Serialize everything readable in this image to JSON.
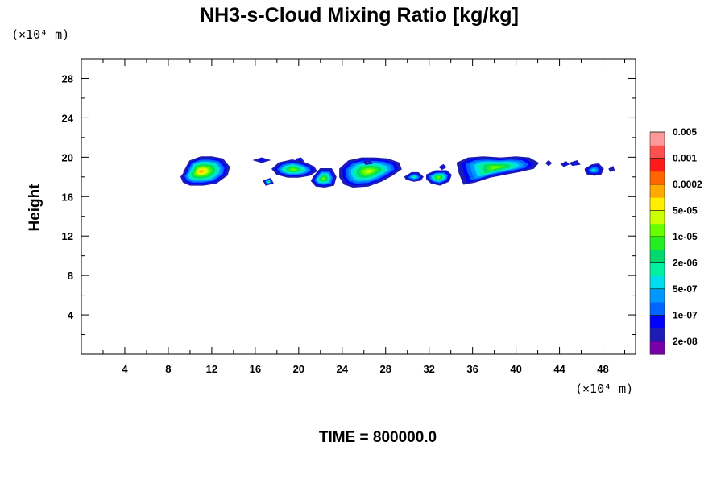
{
  "chart_data": {
    "type": "heatmap",
    "title": "NH3-s-Cloud Mixing Ratio [kg/kg]",
    "ylabel": "Height",
    "x_unit_label": "(×10⁴ m)",
    "y_unit_label": "(×10⁴ m)",
    "xlim": [
      0,
      51
    ],
    "ylim": [
      0,
      30
    ],
    "x_ticks": [
      4,
      8,
      12,
      16,
      20,
      24,
      28,
      32,
      36,
      40,
      44,
      48
    ],
    "y_ticks": [
      4,
      8,
      12,
      16,
      20,
      24,
      28
    ],
    "x_minor_step": 2,
    "y_minor_step": 2,
    "time_label": "TIME = 800000.0",
    "colorbar": {
      "colors": [
        "#7700aa",
        "#1c1cb4",
        "#0000ff",
        "#0066ff",
        "#0099ff",
        "#00ddee",
        "#00f0a0",
        "#00d870",
        "#22ee22",
        "#66ff00",
        "#ccff00",
        "#ffee00",
        "#ffaa00",
        "#ff6600",
        "#ff1a1a",
        "#ff5050",
        "#ff9999"
      ],
      "labels": [
        "2e-08",
        "1e-07",
        "5e-07",
        "2e-06",
        "1e-05",
        "5e-05",
        "0.0002",
        "0.001",
        "0.005"
      ]
    },
    "cloud_cells": [
      {
        "x": [
          9.5,
          10,
          11,
          12,
          13,
          13.6,
          13.4,
          12.4,
          11.2,
          10,
          9.4,
          9.2,
          9.6,
          10
        ],
        "y": [
          18.6,
          19.6,
          20.0,
          20.0,
          19.8,
          19.0,
          18.2,
          17.4,
          17.2,
          17.2,
          17.5,
          18.0,
          18.6,
          18.8
        ],
        "level": 12
      },
      {
        "x": [
          17.6,
          18.2,
          19.4,
          20.6,
          21.4,
          21.6,
          21.0,
          20.0,
          19.0,
          18.0,
          17.6
        ],
        "y": [
          18.8,
          19.4,
          19.7,
          19.4,
          19.0,
          18.6,
          18.2,
          18.0,
          18.0,
          18.3,
          18.8
        ],
        "level": 9
      },
      {
        "x": [
          21.4,
          22.0,
          23.0,
          23.4,
          23.2,
          22.4,
          21.6,
          21.2
        ],
        "y": [
          18.0,
          18.8,
          18.8,
          18.0,
          17.2,
          17.0,
          17.1,
          17.6
        ],
        "level": 9
      },
      {
        "x": [
          23.8,
          24.6,
          25.8,
          27.0,
          28.2,
          29.2,
          29.4,
          28.6,
          27.6,
          26.4,
          25.0,
          24.2,
          23.8
        ],
        "y": [
          18.8,
          19.6,
          19.9,
          19.9,
          19.8,
          19.4,
          18.8,
          18.2,
          17.6,
          17.1,
          17.0,
          17.3,
          18.0
        ],
        "level": 10
      },
      {
        "x": [
          29.8,
          30.4,
          31.0,
          31.4,
          31.2,
          30.6,
          29.9
        ],
        "y": [
          18.0,
          18.4,
          18.4,
          18.0,
          17.7,
          17.6,
          17.8
        ],
        "level": 6
      },
      {
        "x": [
          31.8,
          32.6,
          33.6,
          34.0,
          33.8,
          33.0,
          32.2,
          31.8
        ],
        "y": [
          18.2,
          18.6,
          18.6,
          18.2,
          17.6,
          17.2,
          17.4,
          17.8
        ],
        "level": 9
      },
      {
        "x": [
          34.6,
          35.6,
          37.0,
          38.6,
          40.0,
          41.2,
          42.0,
          41.6,
          40.4,
          39.0,
          37.6,
          36.2,
          35.2,
          34.8
        ],
        "y": [
          19.4,
          19.9,
          20.0,
          19.9,
          20.0,
          19.9,
          19.4,
          18.9,
          18.6,
          18.3,
          18.0,
          17.5,
          17.3,
          18.4
        ],
        "level": 9
      },
      {
        "x": [
          46.4,
          47.0,
          47.6,
          48.0,
          47.8,
          47.2,
          46.6,
          46.4
        ],
        "y": [
          18.8,
          19.2,
          19.3,
          18.8,
          18.3,
          18.2,
          18.3,
          18.6
        ],
        "level": 5
      },
      {
        "x": [
          16.0,
          16.6,
          17.2,
          16.6
        ],
        "y": [
          19.7,
          19.9,
          19.7,
          19.5
        ],
        "level": 2
      },
      {
        "x": [
          16.8,
          17.4,
          17.6,
          17.0
        ],
        "y": [
          17.6,
          17.8,
          17.4,
          17.2
        ],
        "level": 8
      },
      {
        "x": [
          19.8,
          20.2,
          20.4,
          20.0
        ],
        "y": [
          19.8,
          19.9,
          19.6,
          19.5
        ],
        "level": 2
      },
      {
        "x": [
          26.0,
          26.5,
          26.7,
          26.2
        ],
        "y": [
          19.5,
          19.7,
          19.4,
          19.3
        ],
        "level": 3
      },
      {
        "x": [
          33.0,
          33.3,
          33.5,
          33.2
        ],
        "y": [
          19.0,
          19.2,
          19.0,
          18.8
        ],
        "level": 2
      },
      {
        "x": [
          42.8,
          43.0,
          43.2,
          43.0
        ],
        "y": [
          19.4,
          19.6,
          19.4,
          19.2
        ],
        "level": 1
      },
      {
        "x": [
          44.2,
          44.6,
          44.8,
          44.4
        ],
        "y": [
          19.3,
          19.5,
          19.3,
          19.1
        ],
        "level": 2
      },
      {
        "x": [
          45.0,
          45.6,
          45.8,
          45.2
        ],
        "y": [
          19.4,
          19.6,
          19.3,
          19.2
        ],
        "level": 3
      },
      {
        "x": [
          48.6,
          48.9,
          49.0,
          48.7
        ],
        "y": [
          18.8,
          19.0,
          18.7,
          18.6
        ],
        "level": 1
      }
    ]
  }
}
